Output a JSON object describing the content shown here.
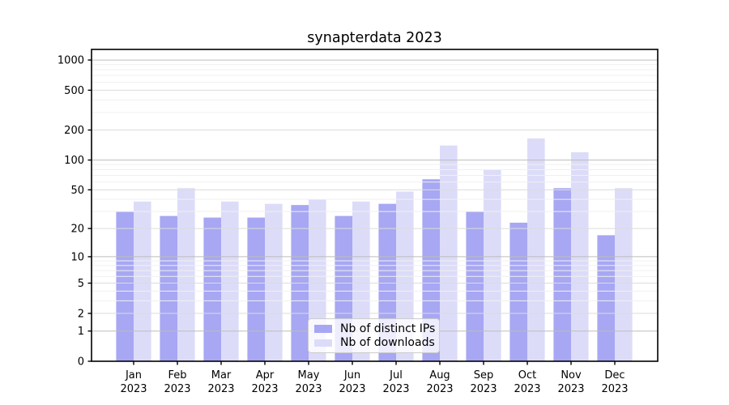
{
  "chart_data": {
    "type": "bar",
    "title": "synapterdata 2023",
    "categories": [
      "Jan\n2023",
      "Feb\n2023",
      "Mar\n2023",
      "Apr\n2023",
      "May\n2023",
      "Jun\n2023",
      "Jul\n2023",
      "Aug\n2023",
      "Sep\n2023",
      "Oct\n2023",
      "Nov\n2023",
      "Dec\n2023"
    ],
    "series": [
      {
        "name": "Nb of distinct IPs",
        "color": "#a7a7f3",
        "values": [
          30,
          27,
          26,
          26,
          35,
          27,
          36,
          64,
          30,
          23,
          52,
          17
        ]
      },
      {
        "name": "Nb of downloads",
        "color": "#dcdcf9",
        "values": [
          38,
          52,
          38,
          36,
          40,
          38,
          48,
          140,
          80,
          165,
          120,
          52
        ]
      }
    ],
    "yticks": [
      1000,
      500,
      200,
      100,
      50,
      20,
      10,
      5,
      2,
      1,
      0
    ],
    "scale": "log1p",
    "ylim": [
      0,
      1276
    ],
    "xlabel": "",
    "ylabel": "",
    "grid": "major+minor horizontal",
    "legend_position": "lower-center",
    "colors": {
      "major_grid": "#bdbdbd",
      "labeled_minor_grid": "#dcdcdc",
      "minor_grid": "#f0f0f0",
      "axis": "#000000"
    }
  }
}
